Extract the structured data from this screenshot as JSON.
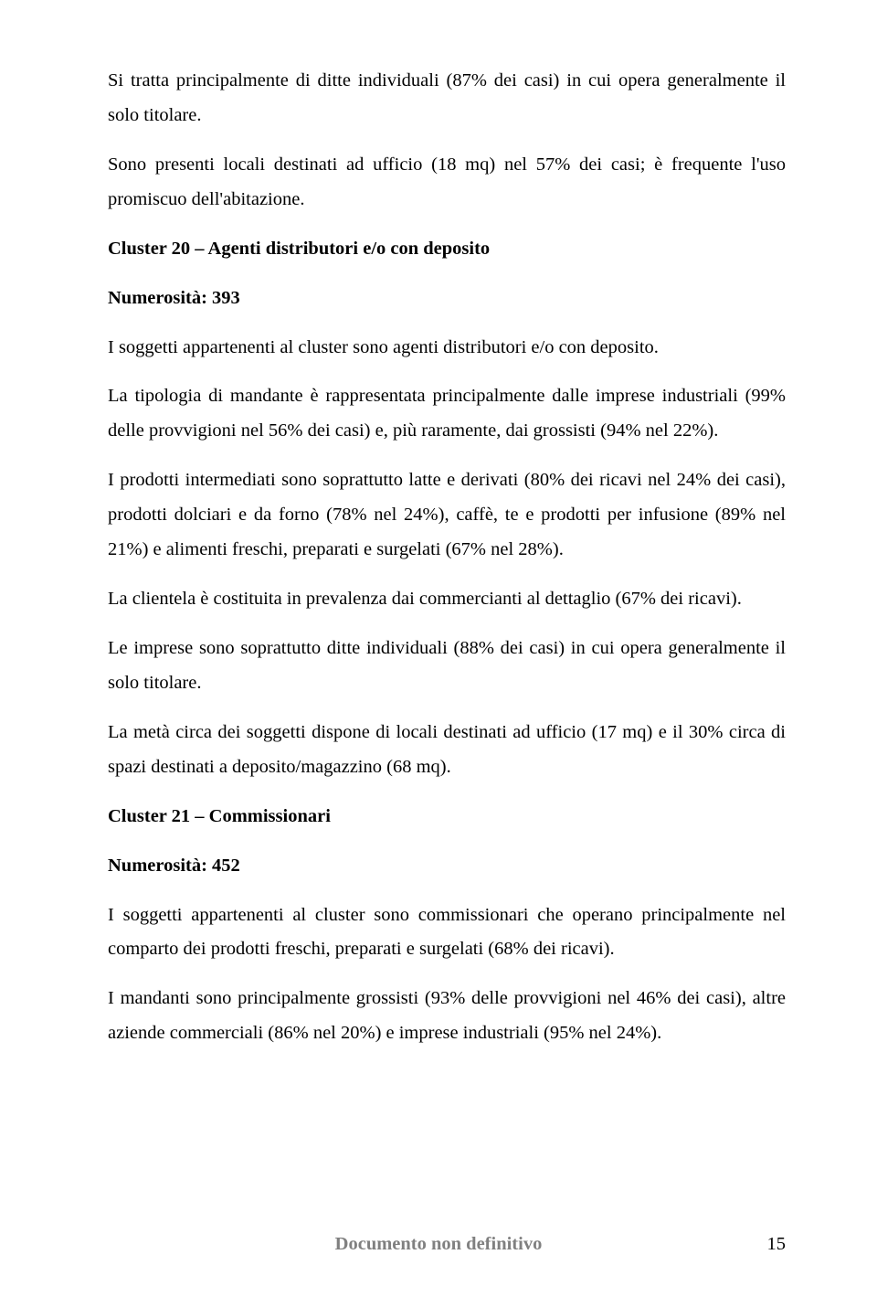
{
  "paragraphs": {
    "p1": "Si tratta principalmente di ditte individuali (87% dei casi) in cui opera generalmente il solo titolare.",
    "p2": "Sono presenti locali destinati ad ufficio (18 mq) nel 57% dei casi; è frequente l'uso promiscuo dell'abitazione.",
    "h1": "Cluster 20 – Agenti distributori e/o con deposito",
    "h2": "Numerosità: 393",
    "p3": "I soggetti appartenenti al cluster sono agenti distributori e/o con deposito.",
    "p4": "La tipologia di mandante è rappresentata principalmente dalle imprese industriali (99% delle provvigioni nel 56% dei casi) e, più raramente, dai grossisti (94% nel 22%).",
    "p5": "I prodotti intermediati sono soprattutto latte e derivati (80% dei ricavi nel 24% dei casi), prodotti dolciari e da forno (78% nel 24%), caffè, te e prodotti per infusione (89% nel 21%) e alimenti freschi, preparati e surgelati (67% nel 28%).",
    "p6": "La clientela è costituita in prevalenza dai commercianti al dettaglio (67% dei ricavi).",
    "p7": "Le imprese sono soprattutto ditte individuali (88% dei casi) in cui opera generalmente il solo titolare.",
    "p8": "La metà circa dei soggetti dispone di locali destinati ad ufficio (17 mq) e il 30% circa di spazi destinati a deposito/magazzino (68 mq).",
    "h3": "Cluster 21 – Commissionari",
    "h4": "Numerosità: 452",
    "p9": "I soggetti appartenenti al cluster sono commissionari che operano principalmente nel comparto dei prodotti freschi, preparati e surgelati (68% dei ricavi).",
    "p10": "I mandanti sono principalmente grossisti (93% delle provvigioni nel 46% dei casi), altre aziende commerciali (86% nel 20%) e imprese industriali (95% nel 24%)."
  },
  "footer": {
    "text": "Documento non definitivo",
    "page_number": "15"
  }
}
